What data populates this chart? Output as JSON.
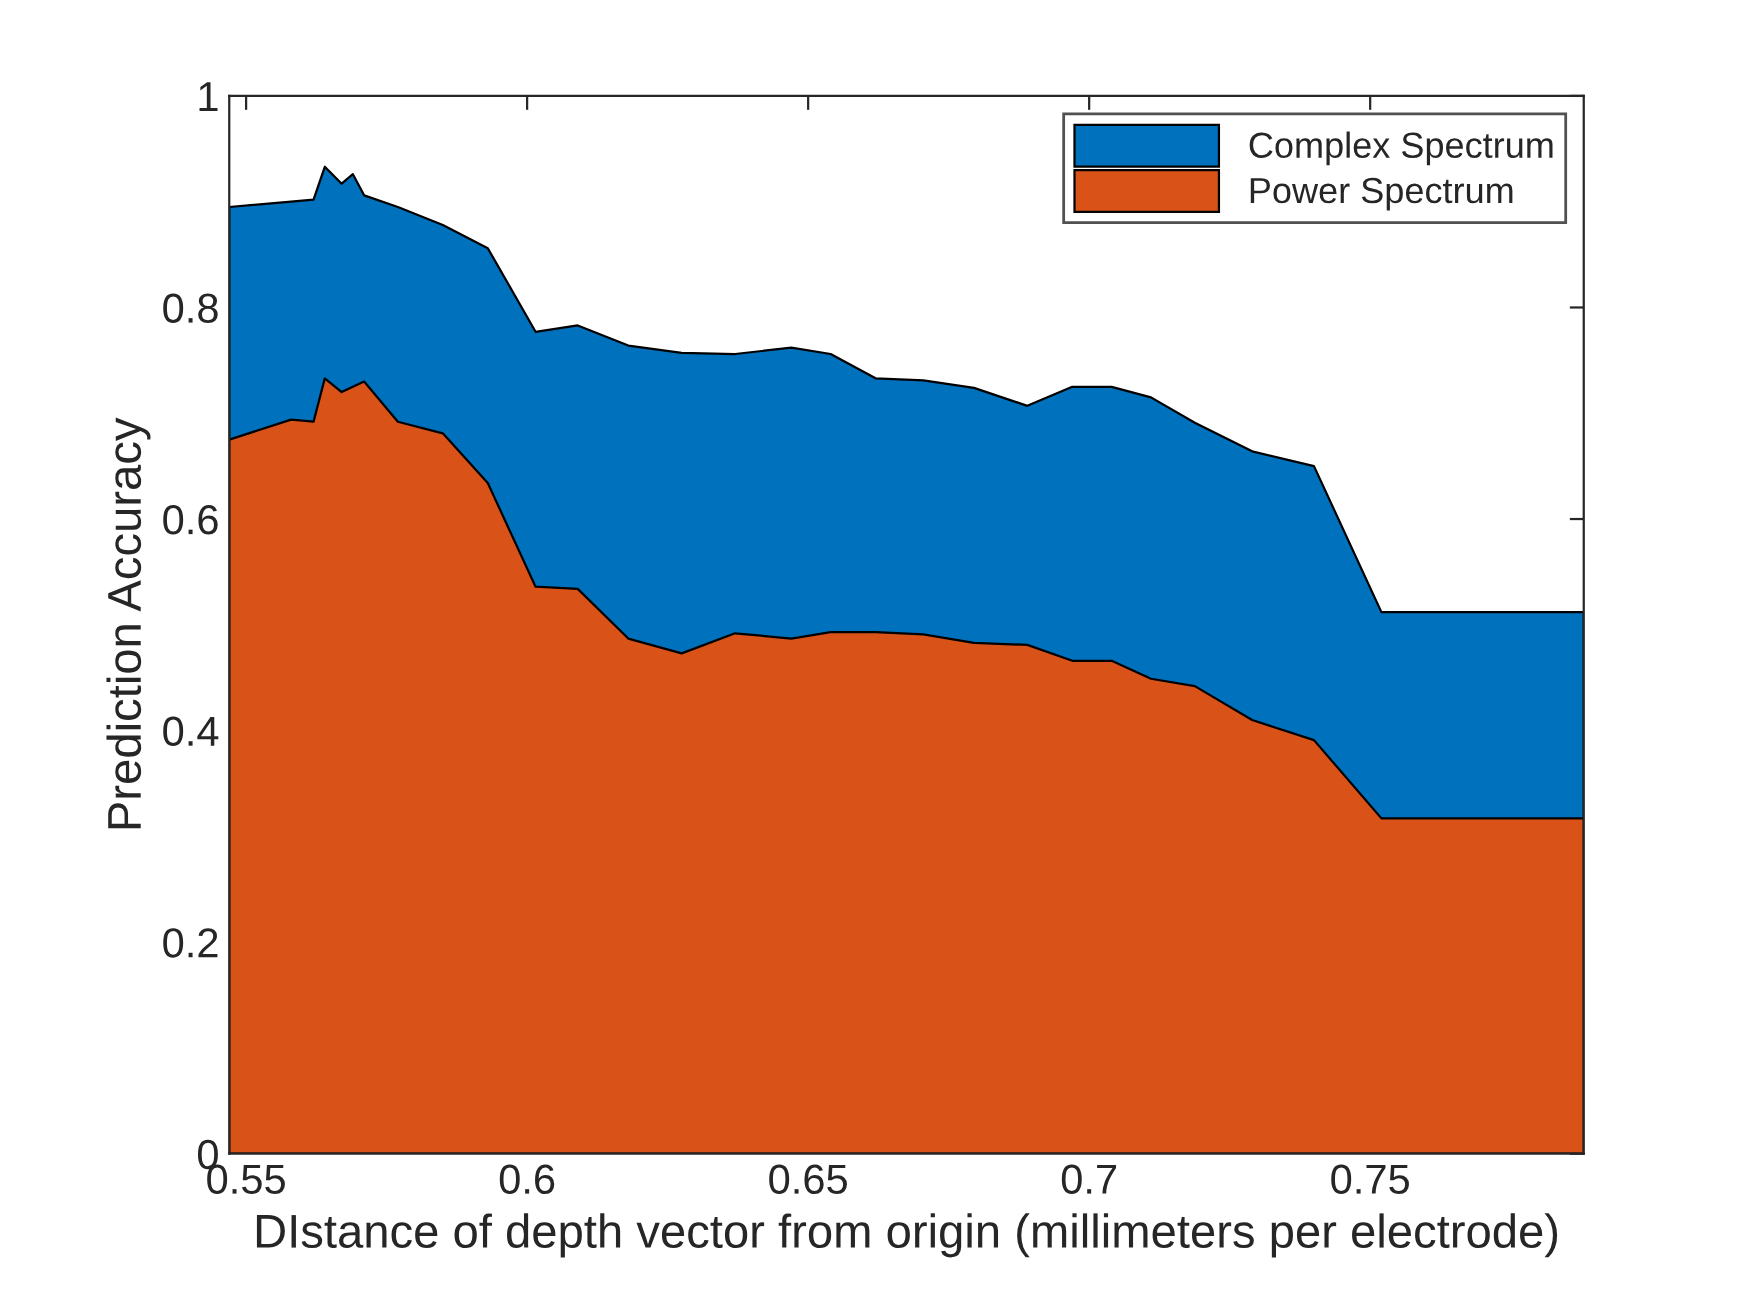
{
  "chart_data": {
    "type": "area",
    "xlabel": "DIstance of depth vector from origin (millimeters per electrode)",
    "ylabel": "Prediction Accuracy",
    "x": [
      0.547,
      0.558,
      0.562,
      0.564,
      0.567,
      0.569,
      0.571,
      0.577,
      0.585,
      0.593,
      0.6015,
      0.609,
      0.618,
      0.6275,
      0.637,
      0.647,
      0.654,
      0.662,
      0.6705,
      0.6795,
      0.689,
      0.697,
      0.704,
      0.711,
      0.7188,
      0.729,
      0.74,
      0.752,
      0.788
    ],
    "series": [
      {
        "name": "Complex Spectrum",
        "color": "#0072bd",
        "values": [
          0.895,
          0.9,
          0.902,
          0.933,
          0.917,
          0.926,
          0.906,
          0.895,
          0.878,
          0.856,
          0.777,
          0.783,
          0.764,
          0.757,
          0.756,
          0.762,
          0.756,
          0.733,
          0.731,
          0.724,
          0.707,
          0.725,
          0.725,
          0.715,
          0.691,
          0.664,
          0.65,
          0.512,
          0.512
        ]
      },
      {
        "name": "Power Spectrum",
        "color": "#d95319",
        "values": [
          0.675,
          0.694,
          0.692,
          0.733,
          0.72,
          0.725,
          0.73,
          0.692,
          0.681,
          0.634,
          0.536,
          0.534,
          0.487,
          0.473,
          0.492,
          0.487,
          0.493,
          0.493,
          0.491,
          0.483,
          0.481,
          0.466,
          0.466,
          0.449,
          0.442,
          0.41,
          0.391,
          0.317,
          0.317
        ]
      }
    ],
    "xlim": [
      0.547,
      0.788
    ],
    "ylim": [
      0,
      1
    ],
    "xticks": [
      0.55,
      0.6,
      0.65,
      0.7,
      0.75
    ],
    "yticks": [
      0,
      0.2,
      0.4,
      0.6,
      0.8,
      1
    ],
    "grid": false,
    "legend": "top right"
  }
}
